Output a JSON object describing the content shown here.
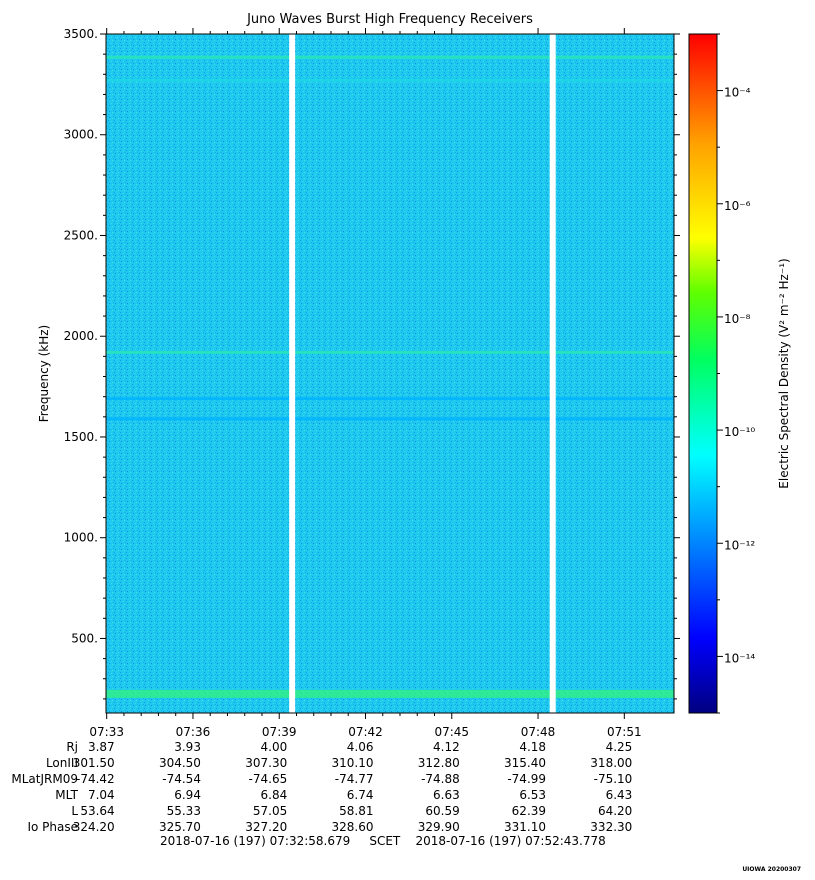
{
  "chart_data": {
    "type": "heatmap",
    "title": "Juno Waves Burst High Frequency Receivers",
    "ylabel": "Frequency (kHz)",
    "ylim": [
      130,
      3500
    ],
    "yticks": [
      "3500.",
      "3000.",
      "2500.",
      "2000.",
      "1500.",
      "1000.",
      "500."
    ],
    "ytick_values": [
      3500,
      3000,
      2500,
      2000,
      1500,
      1000,
      500
    ],
    "xlim_minutes": [
      7.5496,
      7.8788
    ],
    "xticks": [
      "07:33",
      "07:36",
      "07:39",
      "07:42",
      "07:45",
      "07:48",
      "07:51"
    ],
    "xtick_hours": [
      7.55,
      7.6,
      7.65,
      7.7,
      7.75,
      7.8,
      7.85
    ],
    "background_level_exp": -11.8,
    "bands": [
      {
        "freq_khz": 3385,
        "level_exp": -10.9
      },
      {
        "freq_khz": 3270,
        "level_exp": -11.4
      },
      {
        "freq_khz": 1920,
        "level_exp": -10.8
      },
      {
        "freq_khz": 1690,
        "level_exp": -11.5
      },
      {
        "freq_khz": 1590,
        "level_exp": -11.6
      },
      {
        "freq_khz": 225,
        "level_exp": -10.4
      }
    ],
    "data_gaps_hours": [
      7.6575,
      7.8085
    ],
    "colorbar": {
      "label": "Electric Spectral Density (V² m⁻² Hz⁻¹)",
      "range_exp": [
        -15,
        -3
      ],
      "tick_labels": [
        "10⁻⁴",
        "10⁻⁶",
        "10⁻⁸",
        "10⁻¹⁰",
        "10⁻¹²",
        "10⁻¹⁴"
      ],
      "tick_exps": [
        -4,
        -6,
        -8,
        -10,
        -12,
        -14
      ]
    }
  },
  "ephemeris": {
    "labels": [
      "Rj",
      "LonIII",
      "MLatJRM09",
      "MLT",
      "L",
      "Io Phase"
    ],
    "rows": [
      [
        "3.87",
        "3.93",
        "4.00",
        "4.06",
        "4.12",
        "4.18",
        "4.25"
      ],
      [
        "301.50",
        "304.50",
        "307.30",
        "310.10",
        "312.80",
        "315.40",
        "318.00"
      ],
      [
        "-74.42",
        "-74.54",
        "-74.65",
        "-74.77",
        "-74.88",
        "-74.99",
        "-75.10"
      ],
      [
        "7.04",
        "6.94",
        "6.84",
        "6.74",
        "6.63",
        "6.53",
        "6.43"
      ],
      [
        "53.64",
        "55.33",
        "57.05",
        "58.81",
        "60.59",
        "62.39",
        "64.20"
      ],
      [
        "324.20",
        "325.70",
        "327.20",
        "328.60",
        "329.90",
        "331.10",
        "332.30"
      ]
    ]
  },
  "footer": {
    "start": "2018-07-16 (197) 07:32:58.679",
    "frame": "SCET",
    "end": "2018-07-16 (197) 07:52:43.778"
  },
  "watermark": "UIOWA 20200307"
}
